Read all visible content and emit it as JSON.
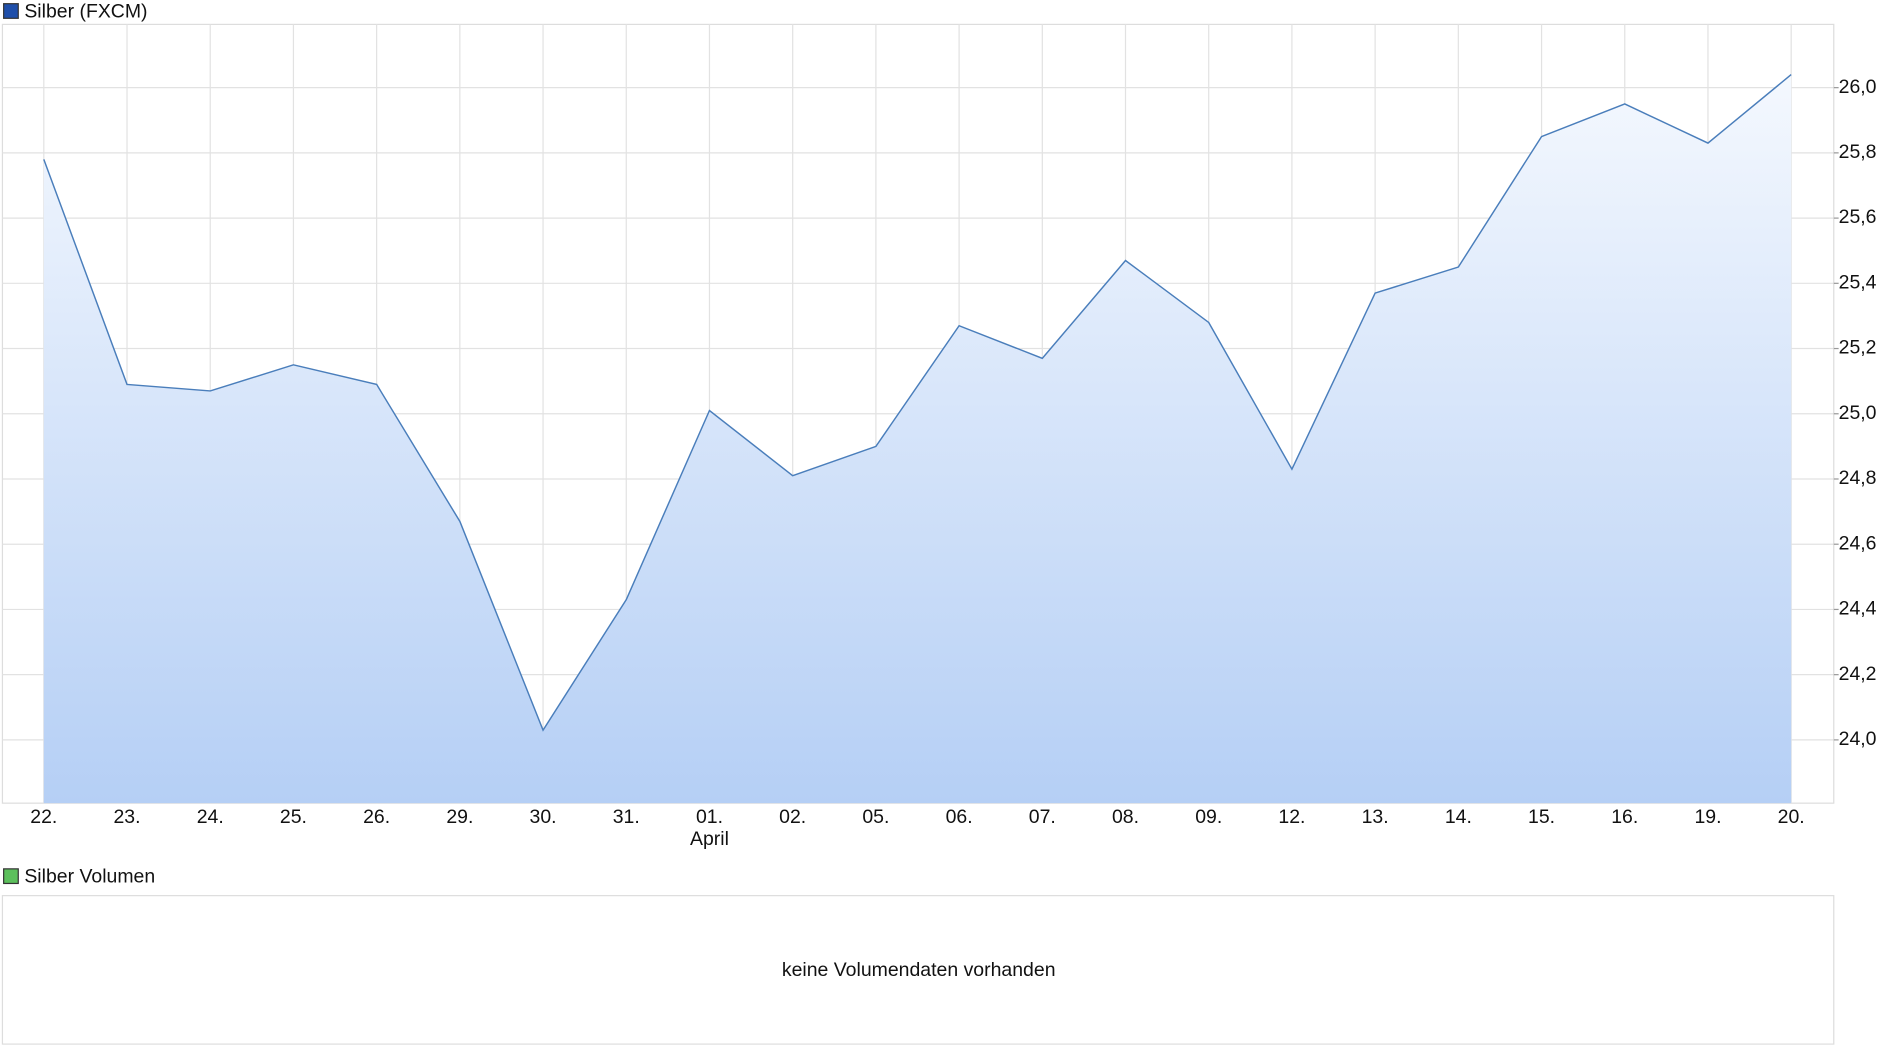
{
  "chart_data": {
    "type": "area",
    "series": [
      {
        "name": "Silber (FXCM)",
        "color": "#4a7ebb",
        "legend_color": "#1f4faa",
        "values": [
          25.78,
          25.09,
          25.07,
          25.15,
          25.09,
          24.67,
          24.03,
          24.43,
          25.01,
          24.81,
          24.9,
          25.27,
          25.17,
          25.47,
          25.28,
          24.83,
          25.37,
          25.45,
          25.85,
          25.95,
          25.83,
          26.04
        ]
      }
    ],
    "categories": [
      "22.",
      "23.",
      "24.",
      "25.",
      "26.",
      "29.",
      "30.",
      "31.",
      "01.",
      "02.",
      "05.",
      "06.",
      "07.",
      "08.",
      "09.",
      "12.",
      "13.",
      "14.",
      "15.",
      "16.",
      "19.",
      "20."
    ],
    "month_labels": [
      null,
      null,
      null,
      null,
      null,
      null,
      null,
      null,
      "April",
      null,
      null,
      null,
      null,
      null,
      null,
      null,
      null,
      null,
      null,
      null,
      null,
      null
    ],
    "ylim": [
      23.806,
      26.194
    ],
    "yticks": [
      {
        "value": 24.0,
        "label": "24,0"
      },
      {
        "value": 24.2,
        "label": "24,2"
      },
      {
        "value": 24.4,
        "label": "24,4"
      },
      {
        "value": 24.6,
        "label": "24,6"
      },
      {
        "value": 24.8,
        "label": "24,8"
      },
      {
        "value": 25.0,
        "label": "25,0"
      },
      {
        "value": 25.2,
        "label": "25,2"
      },
      {
        "value": 25.4,
        "label": "25,4"
      },
      {
        "value": 25.6,
        "label": "25,6"
      },
      {
        "value": 25.8,
        "label": "25,8"
      },
      {
        "value": 26.0,
        "label": "26,0"
      }
    ],
    "grid": true,
    "fill_gradient": [
      "#f4f8fe",
      "#b5cff5"
    ]
  },
  "volume_panel": {
    "legend": "Silber Volumen",
    "legend_color": "#5cc05c",
    "message": "keine Volumendaten vorhanden"
  }
}
